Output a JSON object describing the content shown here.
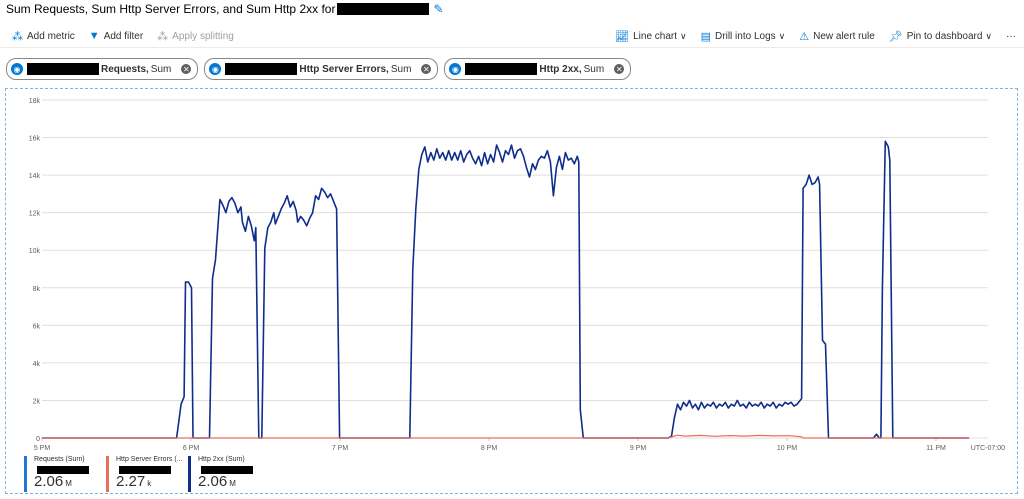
{
  "header": {
    "title": "Sum Requests, Sum Http Server Errors, and Sum Http 2xx for",
    "edit_icon": "pencil-icon"
  },
  "toolbar": {
    "add_metric": "Add metric",
    "add_filter": "Add filter",
    "apply_splitting": "Apply splitting",
    "line_chart": "Line chart",
    "drill_logs": "Drill into Logs",
    "new_alert": "New alert rule",
    "pin": "Pin to dashboard",
    "more": "···"
  },
  "pills": [
    {
      "metric": "Requests,",
      "agg": "Sum"
    },
    {
      "metric": "Http Server Errors,",
      "agg": "Sum"
    },
    {
      "metric": "Http 2xx,",
      "agg": "Sum"
    }
  ],
  "colors": {
    "requests": "#1e78d4",
    "errors": "#e8705b",
    "http2xx": "#0e2d8c",
    "accent": "#0078d4"
  },
  "chart_data": {
    "type": "line",
    "ylim": [
      0,
      18000
    ],
    "y_ticks": [
      0,
      2000,
      4000,
      6000,
      8000,
      10000,
      12000,
      14000,
      16000,
      18000
    ],
    "y_tick_labels": [
      "0",
      "2k",
      "4k",
      "6k",
      "8k",
      "10k",
      "12k",
      "14k",
      "16k",
      "18k"
    ],
    "x_tick_labels": [
      "5 PM",
      "6 PM",
      "7 PM",
      "8 PM",
      "9 PM",
      "10 PM",
      "11 PM"
    ],
    "timezone": "UTC-07:00",
    "series": [
      {
        "name": "Http 2xx (Sum)",
        "points": [
          [
            0,
            0
          ],
          [
            90,
            0
          ],
          [
            93,
            1800
          ],
          [
            95,
            2200
          ],
          [
            96,
            8300
          ],
          [
            98,
            8300
          ],
          [
            100,
            8000
          ],
          [
            101,
            0
          ],
          [
            112,
            0
          ],
          [
            114,
            8500
          ],
          [
            116,
            9500
          ],
          [
            119,
            12700
          ],
          [
            121,
            12400
          ],
          [
            123,
            12000
          ],
          [
            125,
            12600
          ],
          [
            127,
            12800
          ],
          [
            129,
            12500
          ],
          [
            131,
            12000
          ],
          [
            133,
            12300
          ],
          [
            134,
            11500
          ],
          [
            136,
            11000
          ],
          [
            138,
            11800
          ],
          [
            140,
            11300
          ],
          [
            142,
            10500
          ],
          [
            143,
            11200
          ],
          [
            145,
            0
          ],
          [
            147,
            0
          ],
          [
            149,
            10100
          ],
          [
            151,
            11200
          ],
          [
            153,
            11500
          ],
          [
            155,
            12000
          ],
          [
            156,
            11400
          ],
          [
            158,
            11800
          ],
          [
            160,
            12200
          ],
          [
            162,
            12500
          ],
          [
            164,
            12900
          ],
          [
            166,
            12300
          ],
          [
            168,
            12600
          ],
          [
            170,
            12100
          ],
          [
            171,
            11500
          ],
          [
            173,
            11800
          ],
          [
            175,
            11600
          ],
          [
            177,
            11300
          ],
          [
            179,
            11700
          ],
          [
            181,
            12000
          ],
          [
            183,
            12900
          ],
          [
            185,
            12700
          ],
          [
            187,
            13300
          ],
          [
            189,
            13100
          ],
          [
            191,
            12800
          ],
          [
            193,
            13000
          ],
          [
            195,
            12600
          ],
          [
            197,
            12200
          ],
          [
            199,
            0
          ],
          [
            246,
            0
          ],
          [
            248,
            9000
          ],
          [
            250,
            12200
          ],
          [
            252,
            14300
          ],
          [
            254,
            15100
          ],
          [
            256,
            15500
          ],
          [
            258,
            14700
          ],
          [
            260,
            15200
          ],
          [
            262,
            14800
          ],
          [
            264,
            15400
          ],
          [
            266,
            14900
          ],
          [
            268,
            15200
          ],
          [
            270,
            14800
          ],
          [
            272,
            15300
          ],
          [
            274,
            14800
          ],
          [
            276,
            15200
          ],
          [
            278,
            14800
          ],
          [
            280,
            15300
          ],
          [
            282,
            14700
          ],
          [
            284,
            15100
          ],
          [
            286,
            15300
          ],
          [
            288,
            14900
          ],
          [
            290,
            14600
          ],
          [
            292,
            15000
          ],
          [
            294,
            14500
          ],
          [
            296,
            15200
          ],
          [
            298,
            14600
          ],
          [
            300,
            15100
          ],
          [
            302,
            14700
          ],
          [
            304,
            15600
          ],
          [
            306,
            15200
          ],
          [
            308,
            14700
          ],
          [
            310,
            15300
          ],
          [
            312,
            15100
          ],
          [
            314,
            15600
          ],
          [
            316,
            14900
          ],
          [
            318,
            15300
          ],
          [
            320,
            15400
          ],
          [
            322,
            15000
          ],
          [
            324,
            14400
          ],
          [
            326,
            13900
          ],
          [
            328,
            14600
          ],
          [
            330,
            14300
          ],
          [
            332,
            14800
          ],
          [
            334,
            15000
          ],
          [
            336,
            14900
          ],
          [
            338,
            15300
          ],
          [
            340,
            14700
          ],
          [
            342,
            12900
          ],
          [
            344,
            14400
          ],
          [
            346,
            15000
          ],
          [
            348,
            14300
          ],
          [
            350,
            15200
          ],
          [
            352,
            14800
          ],
          [
            354,
            14900
          ],
          [
            356,
            14600
          ],
          [
            358,
            15000
          ],
          [
            359,
            14700
          ],
          [
            360,
            1500
          ],
          [
            362,
            0
          ],
          [
            419,
            0
          ],
          [
            421,
            100
          ],
          [
            423,
            1100
          ],
          [
            425,
            1800
          ],
          [
            427,
            1500
          ],
          [
            429,
            1900
          ],
          [
            431,
            1700
          ],
          [
            433,
            2000
          ],
          [
            435,
            1600
          ],
          [
            437,
            1800
          ],
          [
            439,
            1500
          ],
          [
            441,
            1900
          ],
          [
            443,
            1600
          ],
          [
            445,
            1800
          ],
          [
            447,
            1700
          ],
          [
            449,
            1900
          ],
          [
            451,
            1600
          ],
          [
            453,
            1800
          ],
          [
            455,
            1700
          ],
          [
            457,
            1900
          ],
          [
            459,
            1600
          ],
          [
            461,
            1800
          ],
          [
            463,
            1700
          ],
          [
            465,
            2000
          ],
          [
            467,
            1700
          ],
          [
            469,
            1800
          ],
          [
            471,
            1600
          ],
          [
            473,
            1900
          ],
          [
            475,
            1700
          ],
          [
            477,
            1800
          ],
          [
            479,
            1700
          ],
          [
            481,
            1900
          ],
          [
            483,
            1600
          ],
          [
            485,
            1800
          ],
          [
            487,
            1700
          ],
          [
            489,
            1900
          ],
          [
            491,
            1600
          ],
          [
            493,
            1800
          ],
          [
            495,
            1700
          ],
          [
            497,
            1900
          ],
          [
            499,
            1800
          ],
          [
            501,
            1900
          ],
          [
            503,
            1700
          ],
          [
            505,
            1800
          ],
          [
            506,
            1900
          ],
          [
            508,
            2100
          ],
          [
            509,
            13300
          ],
          [
            511,
            13500
          ],
          [
            513,
            14000
          ],
          [
            515,
            13500
          ],
          [
            517,
            13600
          ],
          [
            519,
            13900
          ],
          [
            520,
            13500
          ],
          [
            522,
            5200
          ],
          [
            524,
            5000
          ],
          [
            526,
            0
          ],
          [
            556,
            0
          ],
          [
            558,
            200
          ],
          [
            560,
            0
          ],
          [
            561,
            0
          ],
          [
            562,
            8000
          ],
          [
            564,
            15800
          ],
          [
            566,
            15500
          ],
          [
            567,
            14800
          ],
          [
            569,
            0
          ],
          [
            620,
            0
          ]
        ]
      },
      {
        "name": "Http Server Errors (Sum)",
        "points": [
          [
            0,
            0
          ],
          [
            419,
            0
          ],
          [
            422,
            80
          ],
          [
            425,
            150
          ],
          [
            430,
            100
          ],
          [
            440,
            140
          ],
          [
            450,
            90
          ],
          [
            460,
            130
          ],
          [
            470,
            100
          ],
          [
            480,
            140
          ],
          [
            490,
            110
          ],
          [
            500,
            120
          ],
          [
            508,
            60
          ],
          [
            509,
            0
          ],
          [
            620,
            0
          ]
        ]
      }
    ],
    "legend": [
      {
        "name": "Requests (Sum)",
        "value": "2.06",
        "unit": "M"
      },
      {
        "name": "Http Server Errors (...",
        "value": "2.27",
        "unit": "k"
      },
      {
        "name": "Http 2xx (Sum)",
        "value": "2.06",
        "unit": "M"
      }
    ]
  }
}
